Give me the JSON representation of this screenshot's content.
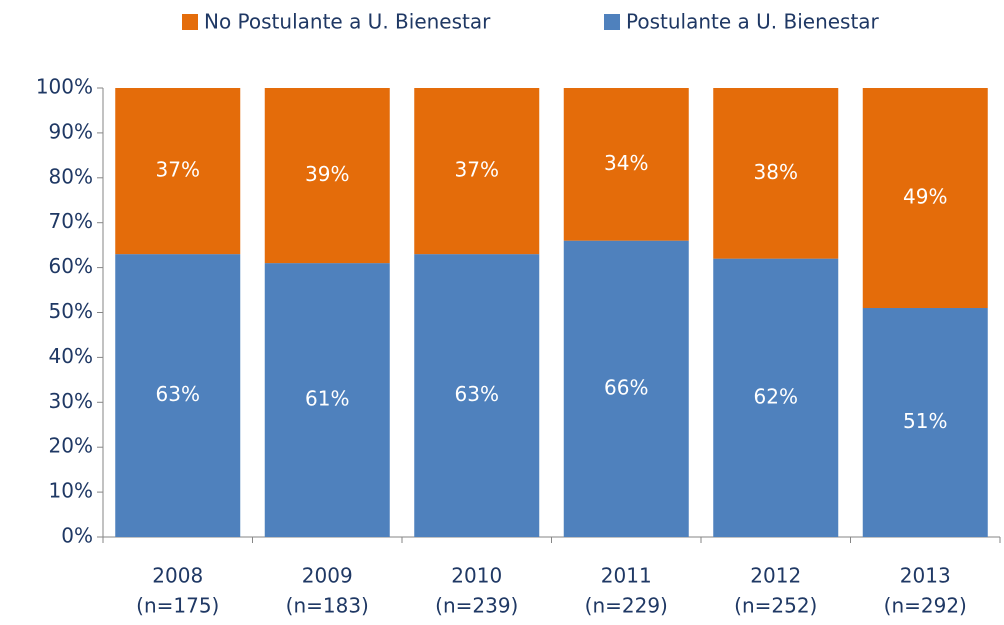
{
  "chart_data": {
    "type": "stacked_bar",
    "categories": [
      [
        "2008",
        "(n=175)"
      ],
      [
        "2009",
        "(n=183)"
      ],
      [
        "2010",
        "(n=239)"
      ],
      [
        "2011",
        "(n=229)"
      ],
      [
        "2012",
        "(n=252)"
      ],
      [
        "2013",
        "(n=292)"
      ]
    ],
    "series": [
      {
        "name": "Postulante a U. Bienestar",
        "color": "#4f81bd",
        "values": [
          63,
          61,
          63,
          66,
          62,
          51
        ],
        "value_labels": [
          "63%",
          "61%",
          "63%",
          "66%",
          "62%",
          "51%"
        ]
      },
      {
        "name": "No Postulante a U. Bienestar",
        "color": "#e46c0a",
        "values": [
          37,
          39,
          37,
          34,
          38,
          49
        ],
        "value_labels": [
          "37%",
          "39%",
          "37%",
          "34%",
          "38%",
          "49%"
        ]
      }
    ],
    "ylim": [
      0,
      100
    ],
    "yticks": [
      {
        "value": 0,
        "label": "0%"
      },
      {
        "value": 10,
        "label": "10%"
      },
      {
        "value": 20,
        "label": "20%"
      },
      {
        "value": 30,
        "label": "30%"
      },
      {
        "value": 40,
        "label": "40%"
      },
      {
        "value": 50,
        "label": "50%"
      },
      {
        "value": 60,
        "label": "60%"
      },
      {
        "value": 70,
        "label": "70%"
      },
      {
        "value": 80,
        "label": "80%"
      },
      {
        "value": 90,
        "label": "90%"
      },
      {
        "value": 100,
        "label": "100%"
      }
    ],
    "legend": "top"
  }
}
